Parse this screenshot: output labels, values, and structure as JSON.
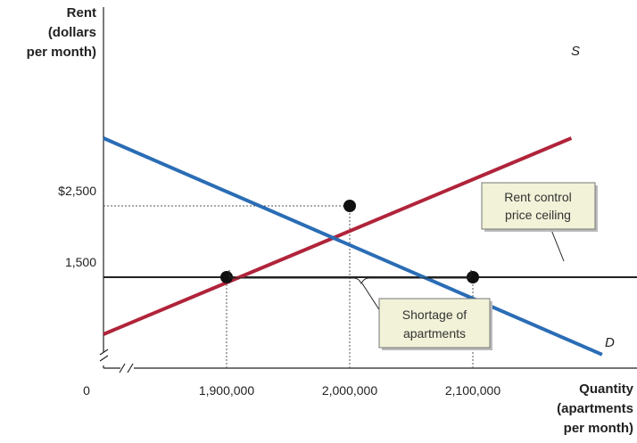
{
  "chart_data": {
    "type": "line",
    "ylabel_lines": [
      "Rent",
      "(dollars",
      "per month)"
    ],
    "xlabel_lines": [
      "Quantity",
      "(apartments",
      "per month)"
    ],
    "origin_label": "0",
    "xlim": [
      1800000,
      2200000
    ],
    "ylim": [
      500,
      3500
    ],
    "x_ticks": [
      {
        "value": 1900000,
        "label": "1,900,000"
      },
      {
        "value": 2000000,
        "label": "2,000,000"
      },
      {
        "value": 2100000,
        "label": "2,100,000"
      }
    ],
    "y_ticks": [
      {
        "value": 2500,
        "label": "$2,500"
      },
      {
        "value": 1500,
        "label": "1,500"
      }
    ],
    "series": [
      {
        "name": "S",
        "color": "#b0243a",
        "points": [
          [
            1800000,
            700
          ],
          [
            2180000,
            3450
          ]
        ]
      },
      {
        "name": "D",
        "color": "#2a6db5",
        "points": [
          [
            1800000,
            3450
          ],
          [
            2205000,
            415
          ]
        ]
      }
    ],
    "ceiling": {
      "value": 1500,
      "color": "#222222"
    },
    "points": [
      {
        "x": 2000000,
        "y": 2500
      },
      {
        "x": 1900000,
        "y": 1500
      },
      {
        "x": 2100000,
        "y": 1500
      }
    ],
    "annotations": {
      "ceiling_box": [
        "Rent control",
        "price ceiling"
      ],
      "shortage_box": [
        "Shortage of",
        "apartments"
      ],
      "box_fill": "#f2f2d8"
    }
  }
}
